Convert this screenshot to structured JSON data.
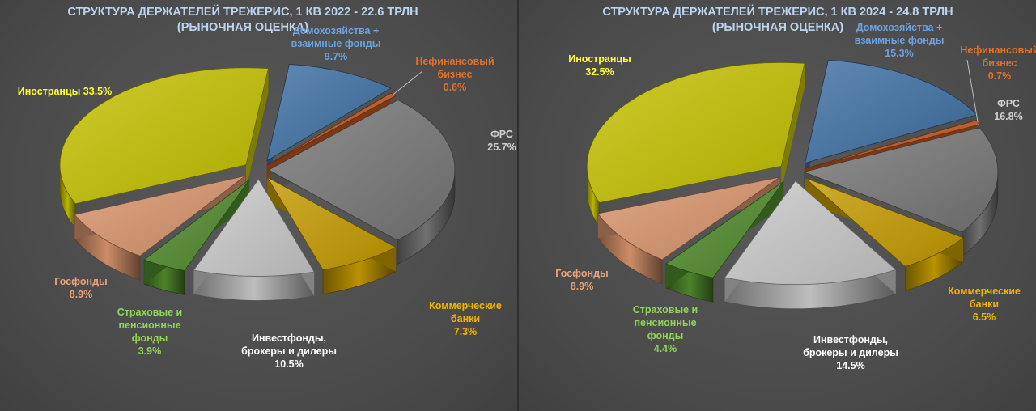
{
  "chart_data": [
    {
      "type": "pie",
      "title": "СТРУКТУРА ДЕРЖАТЕЛЕЙ ТРЕЖЕРИС, 1 КВ 2022 - 22.6 ТРЛН",
      "subtitle": "(РЫНОЧНАЯ ОЦЕНКА)",
      "slices": [
        {
          "label_lines": [
            "Домохозяйства +",
            "взаимные фонды"
          ],
          "value": 9.7,
          "value_text": "9.7%",
          "color": "#3d6fa3"
        },
        {
          "label_lines": [
            "Нефинансовый",
            "бизнес"
          ],
          "value": 0.6,
          "value_text": "0.6%",
          "color": "#c0561d"
        },
        {
          "label_lines": [
            "ФРС"
          ],
          "value": 25.7,
          "value_text": "25.7%",
          "color": "#767676"
        },
        {
          "label_lines": [
            "Коммерческие",
            "банки"
          ],
          "value": 7.3,
          "value_text": "7.3%",
          "color": "#c49a00"
        },
        {
          "label_lines": [
            "Инвестфонды,",
            "брокеры и дилеры"
          ],
          "value": 10.5,
          "value_text": "10.5%",
          "color": "#c8c8c8"
        },
        {
          "label_lines": [
            "Страховые и",
            "пенсионные",
            "фонды"
          ],
          "value": 3.9,
          "value_text": "3.9%",
          "color": "#4f8a2c"
        },
        {
          "label_lines": [
            "Госфонды"
          ],
          "value": 8.9,
          "value_text": "8.9%",
          "color": "#d8946c"
        },
        {
          "label_lines": [
            "Иностранцы 33.5%"
          ],
          "value": 33.5,
          "value_text": "",
          "color": "#c3c000"
        }
      ]
    },
    {
      "type": "pie",
      "title": "СТРУКТУРА ДЕРЖАТЕЛЕЙ ТРЕЖЕРИС, 1 КВ 2024 - 24.8 ТРЛН",
      "subtitle": "(РЫНОЧНАЯ ОЦЕНКА)",
      "slices": [
        {
          "label_lines": [
            "Домохозяйства +",
            "взаимные фонды"
          ],
          "value": 15.3,
          "value_text": "15.3%",
          "color": "#3d6fa3"
        },
        {
          "label_lines": [
            "Нефинансовый",
            "бизнес"
          ],
          "value": 0.7,
          "value_text": "0.7%",
          "color": "#c0561d"
        },
        {
          "label_lines": [
            "ФРС"
          ],
          "value": 16.8,
          "value_text": "16.8%",
          "color": "#767676"
        },
        {
          "label_lines": [
            "Коммерческие",
            "банки"
          ],
          "value": 6.5,
          "value_text": "6.5%",
          "color": "#c49a00"
        },
        {
          "label_lines": [
            "Инвестфонды,",
            "брокеры и дилеры"
          ],
          "value": 14.5,
          "value_text": "14.5%",
          "color": "#c8c8c8"
        },
        {
          "label_lines": [
            "Страховые и",
            "пенсионные",
            "фонды"
          ],
          "value": 4.4,
          "value_text": "4.4%",
          "color": "#4f8a2c"
        },
        {
          "label_lines": [
            "Госфонды"
          ],
          "value": 8.9,
          "value_text": "8.9%",
          "color": "#d8946c"
        },
        {
          "label_lines": [
            "Иностранцы"
          ],
          "value": 32.5,
          "value_text": "32.5%",
          "color": "#c3c000"
        }
      ]
    }
  ]
}
